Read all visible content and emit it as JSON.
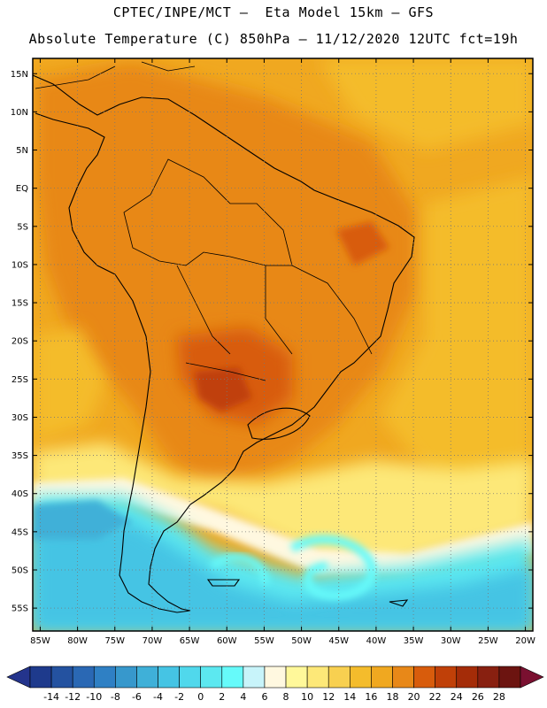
{
  "header": {
    "line1": "CPTEC/INPE/MCT –  Eta Model 15km – GFS",
    "line2": "Absolute Temperature (C) 850hPa – 11/12/2020 12UTC fct=19h"
  },
  "map": {
    "lon_range": [
      -86,
      -19
    ],
    "lat_range": [
      -58,
      17
    ],
    "lat_labels": [
      "15N",
      "10N",
      "5N",
      "EQ",
      "5S",
      "10S",
      "15S",
      "20S",
      "25S",
      "30S",
      "35S",
      "40S",
      "45S",
      "50S",
      "55S"
    ],
    "lat_values": [
      15,
      10,
      5,
      0,
      -5,
      -10,
      -15,
      -20,
      -25,
      -30,
      -35,
      -40,
      -45,
      -50,
      -55
    ],
    "lon_labels": [
      "85W",
      "80W",
      "75W",
      "70W",
      "65W",
      "60W",
      "55W",
      "50W",
      "45W",
      "40W",
      "35W",
      "30W",
      "25W",
      "20W"
    ],
    "lon_values": [
      -85,
      -80,
      -75,
      -70,
      -65,
      -60,
      -55,
      -50,
      -45,
      -40,
      -35,
      -30,
      -25,
      -20
    ],
    "grid": true
  },
  "colorbar": {
    "labels": [
      "-14",
      "-12",
      "-10",
      "-8",
      "-6",
      "-4",
      "-2",
      "0",
      "2",
      "4",
      "6",
      "8",
      "10",
      "12",
      "14",
      "16",
      "18",
      "20",
      "22",
      "24",
      "26",
      "28"
    ],
    "colors": [
      "#1e3a8c",
      "#2452a0",
      "#2a68b4",
      "#2f80c4",
      "#3798cc",
      "#3fb0d8",
      "#45c4e4",
      "#50d8ec",
      "#5ce8f0",
      "#66fafa",
      "#c8f4fa",
      "#fff8e0",
      "#fff89a",
      "#fde878",
      "#f8d050",
      "#f4bc2c",
      "#f0a820",
      "#e88818",
      "#d85c0c",
      "#c04008",
      "#a42c08",
      "#882010",
      "#6c1410"
    ],
    "left_arrow_color": "#24348c",
    "right_arrow_color": "#7a1030"
  }
}
